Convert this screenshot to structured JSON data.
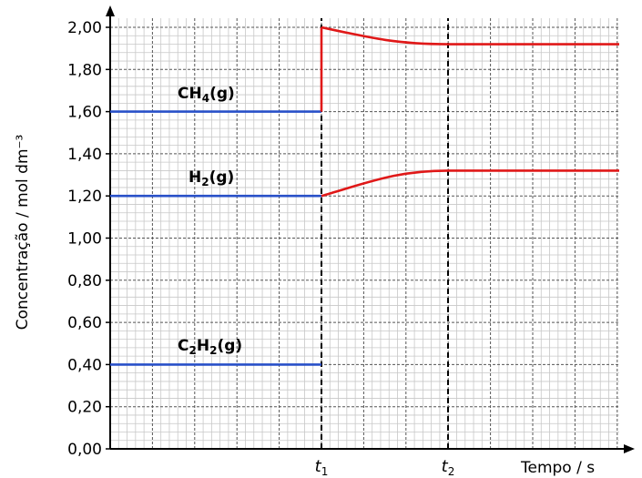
{
  "chart_data": {
    "type": "line",
    "ylabel": "Concentração / mol dm⁻³",
    "xlabel": "Tempo / s",
    "ylim": [
      0,
      2.0
    ],
    "yticks": [
      "0,00",
      "0,20",
      "0,40",
      "0,60",
      "0,80",
      "1,00",
      "1,20",
      "1,40",
      "1,60",
      "1,80",
      "2,00"
    ],
    "xticks": [
      {
        "name": "t1",
        "main": "t",
        "sub": "1"
      },
      {
        "name": "t2",
        "main": "t",
        "sub": "2"
      }
    ],
    "grid": true,
    "series": [
      {
        "name": "CH4(g)",
        "label_main": "CH",
        "label_sub": "4",
        "label_tail": "(g)",
        "before": 1.6,
        "jump_to": 2.0,
        "after": 1.92,
        "color_before": "#2850c8",
        "color_after": "#e01818"
      },
      {
        "name": "H2(g)",
        "label_main": "H",
        "label_sub": "2",
        "label_tail": "(g)",
        "before": 1.2,
        "after": 1.32,
        "color_before": "#2850c8",
        "color_after": "#e01818"
      },
      {
        "name": "C2H2(g)",
        "label_main": "C",
        "label_sub": "2",
        "label_mid": "H",
        "label_sub2": "2",
        "label_tail": "(g)",
        "before": 0.4,
        "color_before": "#2850c8"
      }
    ]
  }
}
